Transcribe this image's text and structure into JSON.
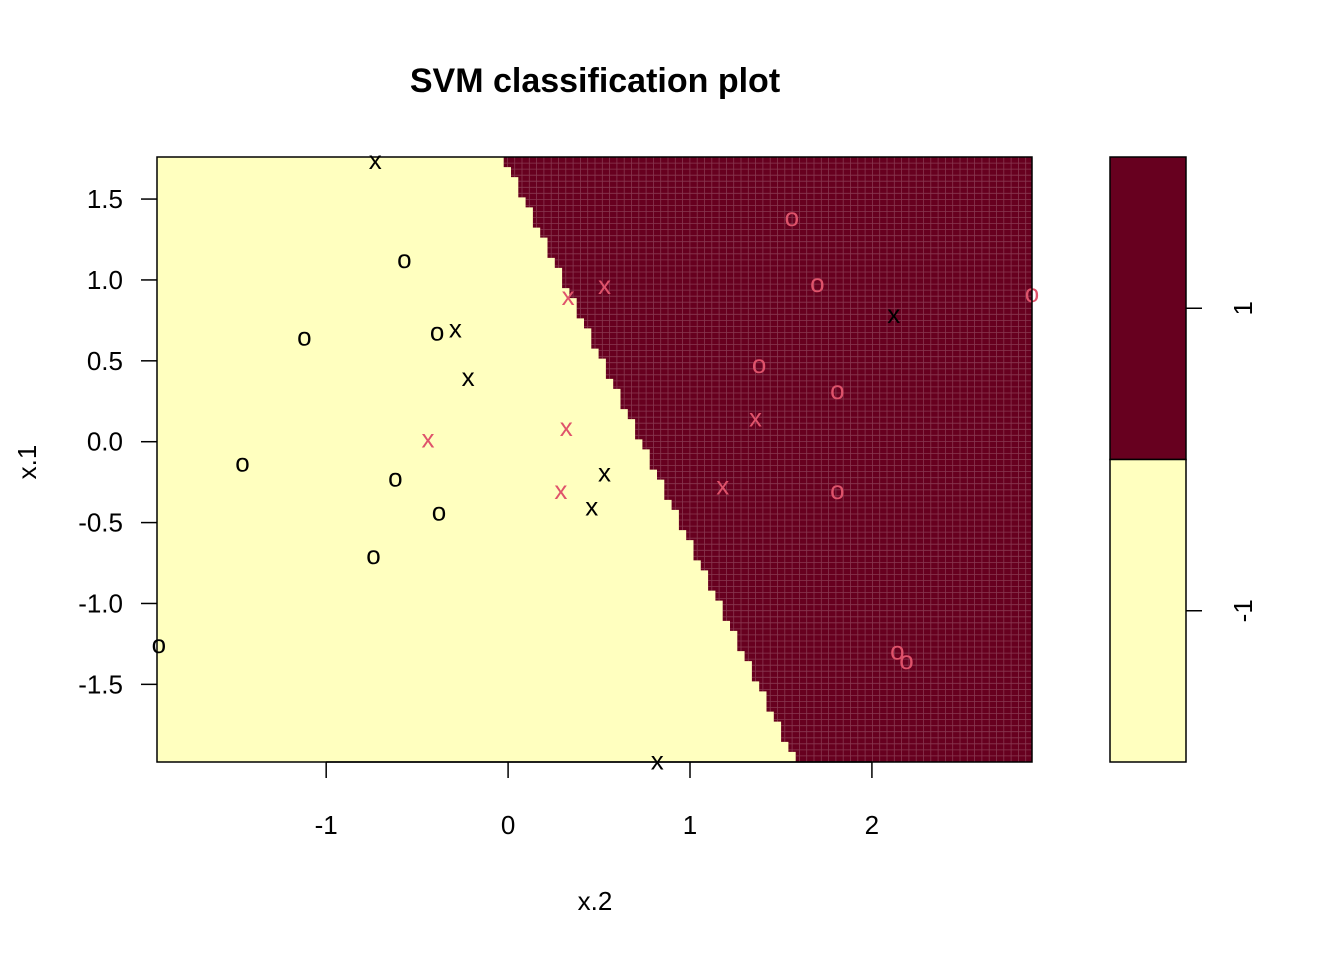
{
  "chart_data": {
    "type": "scatter",
    "title": "SVM classification plot",
    "xlabel": "x.2",
    "ylabel": "x.1",
    "xlim": [
      -1.93,
      2.88
    ],
    "ylim": [
      -1.98,
      1.76
    ],
    "x_ticks": [
      -1,
      0,
      1,
      2
    ],
    "x_tick_labels": [
      "-1",
      "0",
      "1",
      "2"
    ],
    "y_ticks": [
      -1.5,
      -1.0,
      -0.5,
      0.0,
      0.5,
      1.0,
      1.5
    ],
    "y_tick_labels": [
      "-1.5",
      "-1.0",
      "-0.5",
      "0.0",
      "0.5",
      "1.0",
      "1.5"
    ],
    "decision_boundary": {
      "description_points": [
        [
          -0.03,
          1.76
        ],
        [
          1.58,
          -1.98
        ]
      ],
      "region_left_class": "-1",
      "region_right_class": "1"
    },
    "regions": [
      {
        "class": "-1",
        "color": "#FFFFBF"
      },
      {
        "class": "1",
        "color": "#67001F"
      }
    ],
    "legend": {
      "placement": "right",
      "levels": [
        {
          "label": "1",
          "color": "#67001F"
        },
        {
          "label": "-1",
          "color": "#FFFFBF"
        }
      ]
    },
    "point_colors": {
      "black": "#000000",
      "red": "#DF536B"
    },
    "points": [
      {
        "x": -0.73,
        "y": 1.74,
        "glyph": "x",
        "color": "black"
      },
      {
        "x": -0.57,
        "y": 1.13,
        "glyph": "o",
        "color": "black"
      },
      {
        "x": -1.12,
        "y": 0.65,
        "glyph": "o",
        "color": "black"
      },
      {
        "x": -0.39,
        "y": 0.68,
        "glyph": "o",
        "color": "black"
      },
      {
        "x": -0.29,
        "y": 0.7,
        "glyph": "x",
        "color": "black"
      },
      {
        "x": -0.22,
        "y": 0.4,
        "glyph": "x",
        "color": "black"
      },
      {
        "x": -1.46,
        "y": -0.13,
        "glyph": "o",
        "color": "black"
      },
      {
        "x": -0.62,
        "y": -0.22,
        "glyph": "o",
        "color": "black"
      },
      {
        "x": -0.38,
        "y": -0.43,
        "glyph": "o",
        "color": "black"
      },
      {
        "x": -0.74,
        "y": -0.7,
        "glyph": "o",
        "color": "black"
      },
      {
        "x": -1.92,
        "y": -1.25,
        "glyph": "o",
        "color": "black"
      },
      {
        "x": 0.53,
        "y": -0.19,
        "glyph": "x",
        "color": "black"
      },
      {
        "x": 0.46,
        "y": -0.4,
        "glyph": "x",
        "color": "black"
      },
      {
        "x": 0.82,
        "y": -1.97,
        "glyph": "x",
        "color": "black"
      },
      {
        "x": 2.12,
        "y": 0.79,
        "glyph": "x",
        "color": "black"
      },
      {
        "x": -0.44,
        "y": 0.02,
        "glyph": "x",
        "color": "red"
      },
      {
        "x": 0.33,
        "y": 0.9,
        "glyph": "x",
        "color": "red"
      },
      {
        "x": 0.53,
        "y": 0.97,
        "glyph": "x",
        "color": "red"
      },
      {
        "x": 0.32,
        "y": 0.09,
        "glyph": "x",
        "color": "red"
      },
      {
        "x": 0.29,
        "y": -0.3,
        "glyph": "x",
        "color": "red"
      },
      {
        "x": 1.18,
        "y": -0.27,
        "glyph": "x",
        "color": "red"
      },
      {
        "x": 1.36,
        "y": 0.15,
        "glyph": "x",
        "color": "red"
      },
      {
        "x": 1.56,
        "y": 1.39,
        "glyph": "o",
        "color": "red"
      },
      {
        "x": 1.7,
        "y": 0.98,
        "glyph": "o",
        "color": "red"
      },
      {
        "x": 2.88,
        "y": 0.92,
        "glyph": "o",
        "color": "red"
      },
      {
        "x": 1.38,
        "y": 0.48,
        "glyph": "o",
        "color": "red"
      },
      {
        "x": 1.81,
        "y": 0.32,
        "glyph": "o",
        "color": "red"
      },
      {
        "x": 1.81,
        "y": -0.3,
        "glyph": "o",
        "color": "red"
      },
      {
        "x": 2.14,
        "y": -1.29,
        "glyph": "o",
        "color": "red"
      },
      {
        "x": 2.19,
        "y": -1.35,
        "glyph": "o",
        "color": "red"
      }
    ]
  }
}
